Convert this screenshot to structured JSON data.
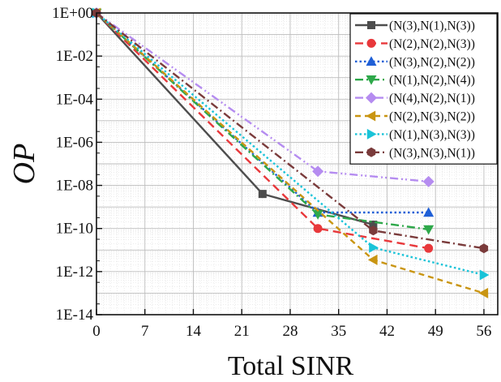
{
  "chart_data": {
    "type": "line",
    "xlabel": "Total SINR",
    "ylabel": "OP",
    "y_scale": "log",
    "xlim": [
      0,
      58
    ],
    "ylim": [
      1e-14,
      1
    ],
    "x_ticks": [
      "0",
      "7",
      "14",
      "21",
      "28",
      "35",
      "42",
      "49",
      "56"
    ],
    "y_ticks": [
      "1E+00",
      "1E-02",
      "1E-04",
      "1E-06",
      "1E-08",
      "1E-10",
      "1E-12",
      "1E-14"
    ],
    "grid": true,
    "legend_position": "top-right",
    "series": [
      {
        "name": "(N(3),N(1),N(3))",
        "color": "#4d4d4d",
        "marker": "square",
        "dash": "solid",
        "points": [
          [
            0,
            1
          ],
          [
            24,
            4e-09
          ],
          [
            40,
            1.5e-10
          ]
        ]
      },
      {
        "name": "(N(2),N(2),N(3))",
        "color": "#e8383b",
        "marker": "circle",
        "dash": "long-dash",
        "points": [
          [
            0,
            1
          ],
          [
            32,
            1e-10
          ],
          [
            48,
            1.2e-11
          ]
        ]
      },
      {
        "name": "(N(3),N(2),N(2))",
        "color": "#1f5fd6",
        "marker": "triangle-up",
        "dash": "dotted",
        "points": [
          [
            0,
            1
          ],
          [
            32,
            5.5e-10
          ],
          [
            48,
            5.5e-10
          ]
        ]
      },
      {
        "name": "(N(1),N(2),N(4))",
        "color": "#2ea84a",
        "marker": "triangle-down",
        "dash": "dash-dot",
        "points": [
          [
            0,
            1
          ],
          [
            32,
            4.5e-10
          ],
          [
            48,
            9e-11
          ]
        ]
      },
      {
        "name": "(N(4),N(2),N(1))",
        "color": "#b58cf0",
        "marker": "diamond",
        "dash": "dash-dot-dot",
        "points": [
          [
            0,
            1
          ],
          [
            32,
            4.5e-08
          ],
          [
            48,
            1.5e-08
          ]
        ]
      },
      {
        "name": "(N(2),N(3),N(2))",
        "color": "#c99512",
        "marker": "triangle-left",
        "dash": "short-dash",
        "points": [
          [
            0,
            1
          ],
          [
            40,
            3.5e-12
          ],
          [
            56,
            1e-13
          ]
        ]
      },
      {
        "name": "(N(1),N(3),N(3))",
        "color": "#19c3d8",
        "marker": "triangle-right",
        "dash": "dotted",
        "points": [
          [
            0,
            1
          ],
          [
            40,
            1.3e-11
          ],
          [
            56,
            7e-13
          ]
        ]
      },
      {
        "name": "(N(3),N(3),N(1))",
        "color": "#7a3b3b",
        "marker": "hexagon",
        "dash": "dash-dot",
        "points": [
          [
            0,
            1
          ],
          [
            40,
            8e-11
          ],
          [
            56,
            1.2e-11
          ]
        ]
      }
    ]
  }
}
